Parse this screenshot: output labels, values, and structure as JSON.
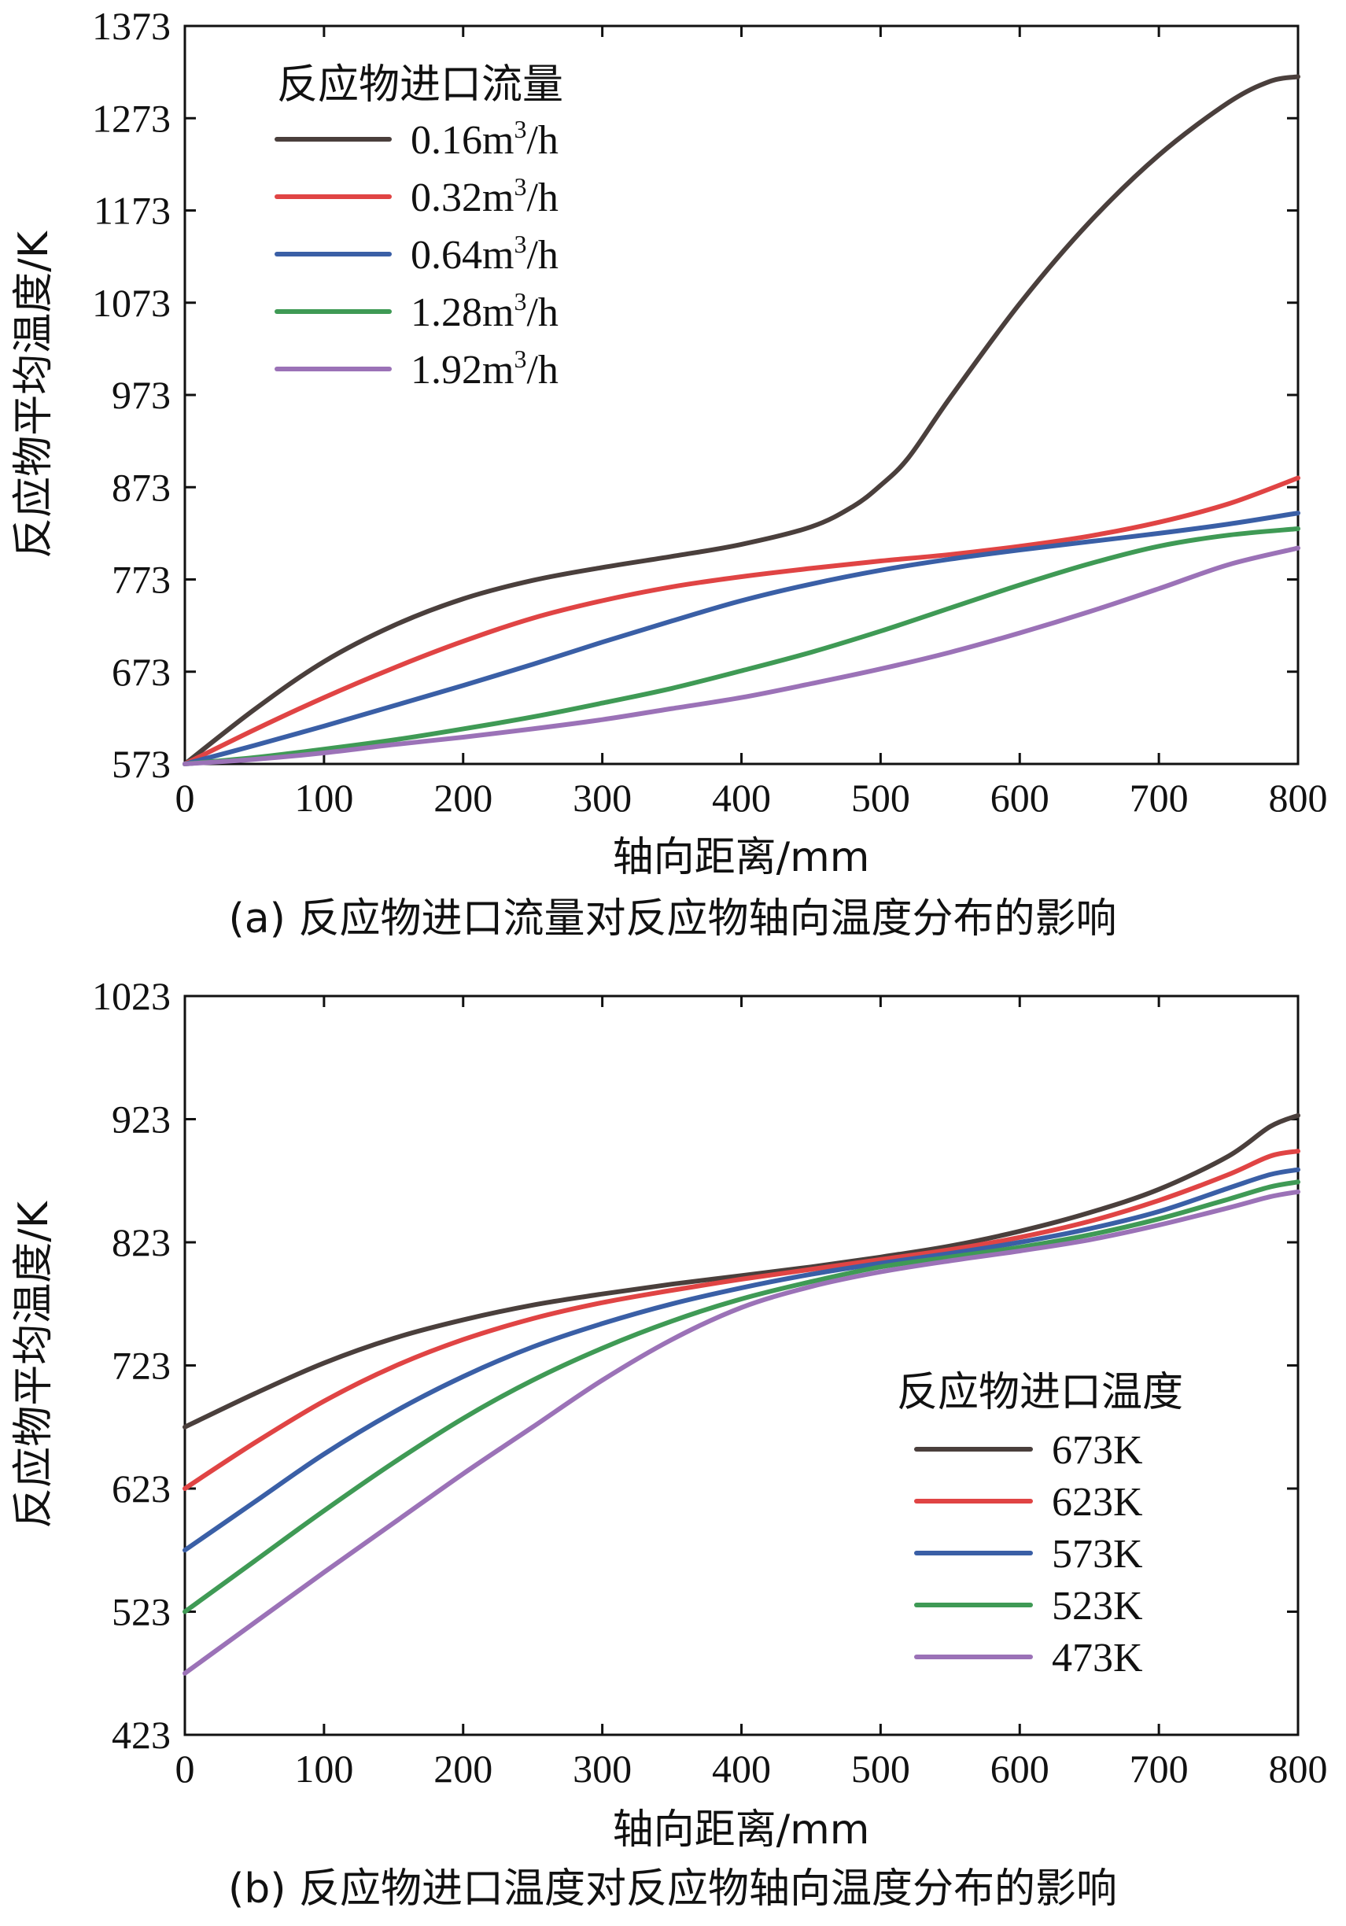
{
  "chart_data": [
    {
      "type": "line",
      "title": "",
      "caption": "(a) 反应物进口流量对反应物轴向温度分布的影响",
      "xlabel": "轴向距离/mm",
      "ylabel": "反应物平均温度/K",
      "xlim": [
        0,
        800
      ],
      "ylim": [
        573,
        1373
      ],
      "xticks": [
        0,
        100,
        200,
        300,
        400,
        500,
        600,
        700,
        800
      ],
      "yticks": [
        573,
        673,
        773,
        873,
        973,
        1073,
        1173,
        1273,
        1373
      ],
      "grid": false,
      "legend_title": "反应物进口流量",
      "legend_position": "top-left",
      "series": [
        {
          "name": "0.16m³/h",
          "label_main": "0.16m",
          "label_sup": "3",
          "label_tail": "/h",
          "color": "#4a3f3c",
          "x": [
            0,
            50,
            100,
            150,
            200,
            250,
            300,
            350,
            400,
            450,
            480,
            500,
            520,
            550,
            600,
            650,
            700,
            750,
            780,
            800
          ],
          "y": [
            573,
            632,
            684,
            723,
            752,
            772,
            786,
            798,
            811,
            830,
            852,
            875,
            905,
            970,
            1072,
            1160,
            1233,
            1290,
            1313,
            1318
          ]
        },
        {
          "name": "0.32m³/h",
          "label_main": "0.32m",
          "label_sup": "3",
          "label_tail": "/h",
          "color": "#e04444",
          "x": [
            0,
            50,
            100,
            150,
            200,
            250,
            300,
            350,
            400,
            450,
            500,
            550,
            600,
            650,
            700,
            750,
            800
          ],
          "y": [
            573,
            610,
            645,
            677,
            706,
            731,
            750,
            765,
            776,
            785,
            793,
            800,
            809,
            820,
            835,
            855,
            883
          ]
        },
        {
          "name": "0.64m³/h",
          "label_main": "0.64m",
          "label_sup": "3",
          "label_tail": "/h",
          "color": "#3a5fa6",
          "x": [
            0,
            50,
            100,
            150,
            200,
            250,
            300,
            350,
            400,
            450,
            500,
            550,
            600,
            650,
            700,
            750,
            800
          ],
          "y": [
            573,
            593,
            614,
            636,
            658,
            681,
            705,
            728,
            750,
            768,
            783,
            795,
            805,
            814,
            823,
            833,
            845
          ]
        },
        {
          "name": "1.28m³/h",
          "label_main": "1.28m",
          "label_sup": "3",
          "label_tail": "/h",
          "color": "#3f9a55",
          "x": [
            0,
            50,
            100,
            150,
            200,
            250,
            300,
            350,
            400,
            450,
            500,
            550,
            600,
            650,
            700,
            750,
            800
          ],
          "y": [
            573,
            580,
            589,
            599,
            611,
            624,
            639,
            655,
            674,
            694,
            717,
            742,
            767,
            790,
            809,
            821,
            828
          ]
        },
        {
          "name": "1.92m³/h",
          "label_main": "1.92m",
          "label_sup": "3",
          "label_tail": "/h",
          "color": "#9b72b7",
          "x": [
            0,
            50,
            100,
            150,
            200,
            250,
            300,
            350,
            400,
            450,
            500,
            550,
            600,
            650,
            700,
            750,
            800
          ],
          "y": [
            573,
            578,
            585,
            594,
            602,
            611,
            621,
            633,
            645,
            660,
            676,
            694,
            715,
            738,
            763,
            789,
            807
          ]
        }
      ]
    },
    {
      "type": "line",
      "title": "",
      "caption": "(b) 反应物进口温度对反应物轴向温度分布的影响",
      "xlabel": "轴向距离/mm",
      "ylabel": "反应物平均温度/K",
      "xlim": [
        0,
        800
      ],
      "ylim": [
        423,
        1023
      ],
      "xticks": [
        0,
        100,
        200,
        300,
        400,
        500,
        600,
        700,
        800
      ],
      "yticks": [
        423,
        523,
        623,
        723,
        823,
        923,
        1023
      ],
      "grid": false,
      "legend_title": "反应物进口温度",
      "legend_position": "bottom-right",
      "series": [
        {
          "name": "673K",
          "label_main": "673K",
          "label_sup": "",
          "label_tail": "",
          "color": "#4a3f3c",
          "x": [
            0,
            50,
            100,
            150,
            200,
            250,
            300,
            350,
            400,
            450,
            500,
            550,
            600,
            650,
            700,
            750,
            780,
            800
          ],
          "y": [
            673,
            700,
            725,
            745,
            760,
            772,
            781,
            789,
            796,
            803,
            811,
            820,
            832,
            847,
            866,
            893,
            917,
            926
          ]
        },
        {
          "name": "623K",
          "label_main": "623K",
          "label_sup": "",
          "label_tail": "",
          "color": "#e04444",
          "x": [
            0,
            50,
            100,
            150,
            200,
            250,
            300,
            350,
            400,
            450,
            500,
            550,
            600,
            650,
            700,
            750,
            780,
            800
          ],
          "y": [
            623,
            660,
            694,
            722,
            744,
            761,
            774,
            784,
            793,
            801,
            809,
            817,
            827,
            840,
            857,
            878,
            893,
            897
          ]
        },
        {
          "name": "573K",
          "label_main": "573K",
          "label_sup": "",
          "label_tail": "",
          "color": "#3a5fa6",
          "x": [
            0,
            50,
            100,
            150,
            200,
            250,
            300,
            350,
            400,
            450,
            500,
            550,
            600,
            650,
            700,
            750,
            780,
            800
          ],
          "y": [
            573,
            612,
            651,
            685,
            714,
            738,
            757,
            773,
            786,
            797,
            806,
            814,
            823,
            834,
            848,
            867,
            878,
            882
          ]
        },
        {
          "name": "523K",
          "label_main": "523K",
          "label_sup": "",
          "label_tail": "",
          "color": "#3f9a55",
          "x": [
            0,
            50,
            100,
            150,
            200,
            250,
            300,
            350,
            400,
            450,
            500,
            550,
            600,
            650,
            700,
            750,
            780,
            800
          ],
          "y": [
            523,
            564,
            605,
            644,
            680,
            711,
            737,
            759,
            777,
            791,
            803,
            811,
            819,
            829,
            842,
            858,
            868,
            872
          ]
        },
        {
          "name": "473K",
          "label_main": "473K",
          "label_sup": "",
          "label_tail": "",
          "color": "#9b72b7",
          "x": [
            0,
            50,
            100,
            150,
            200,
            250,
            300,
            350,
            400,
            450,
            500,
            550,
            600,
            650,
            700,
            750,
            780,
            800
          ],
          "y": [
            473,
            514,
            555,
            595,
            635,
            673,
            711,
            744,
            770,
            787,
            799,
            808,
            816,
            825,
            837,
            851,
            860,
            864
          ]
        }
      ]
    }
  ]
}
